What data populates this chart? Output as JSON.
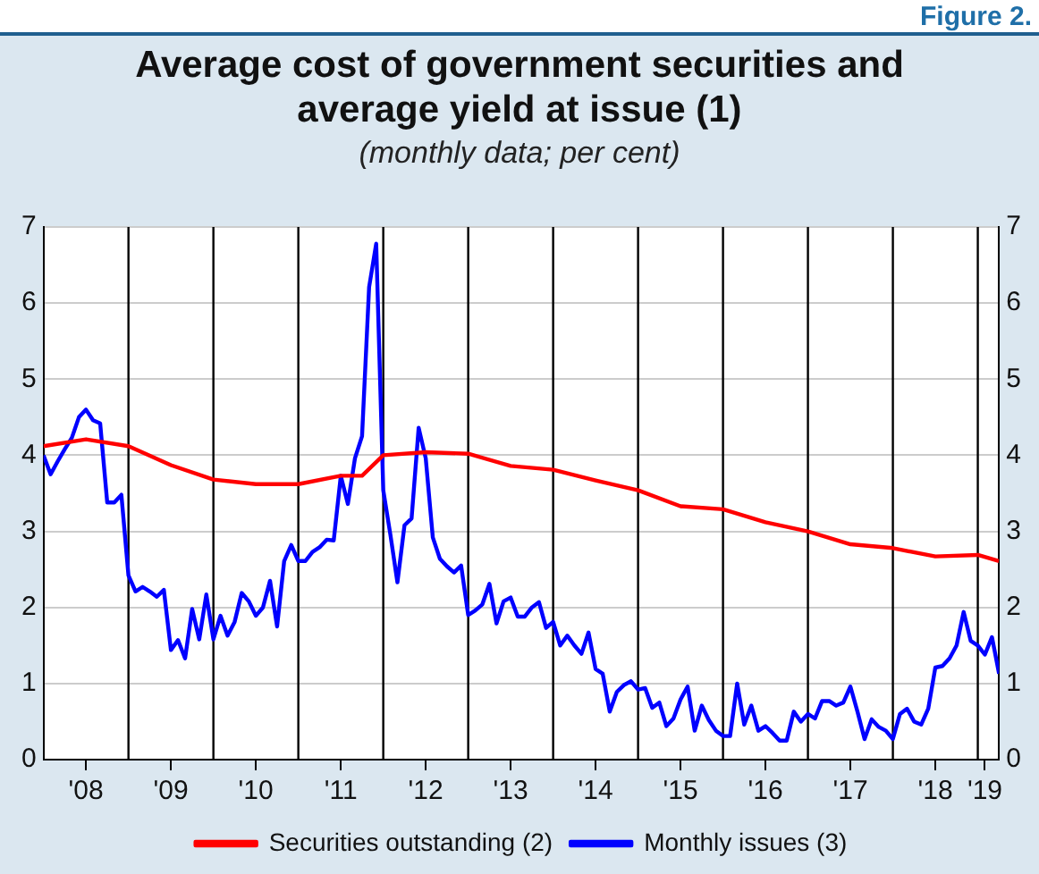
{
  "chart_data": {
    "type": "line",
    "title": "Average cost of government securities and average yield at issue (1)",
    "subtitle": "(monthly data; per cent)",
    "annotations": [
      "Figure 2."
    ],
    "x": [
      "2008-01",
      "2008-02",
      "2008-03",
      "2008-04",
      "2008-05",
      "2008-06",
      "2008-07",
      "2008-08",
      "2008-09",
      "2008-10",
      "2008-11",
      "2008-12",
      "2009-01",
      "2009-02",
      "2009-03",
      "2009-04",
      "2009-05",
      "2009-06",
      "2009-07",
      "2009-08",
      "2009-09",
      "2009-10",
      "2009-11",
      "2009-12",
      "2010-01",
      "2010-02",
      "2010-03",
      "2010-04",
      "2010-05",
      "2010-06",
      "2010-07",
      "2010-08",
      "2010-09",
      "2010-10",
      "2010-11",
      "2010-12",
      "2011-01",
      "2011-02",
      "2011-03",
      "2011-04",
      "2011-05",
      "2011-06",
      "2011-07",
      "2011-08",
      "2011-09",
      "2011-10",
      "2011-11",
      "2011-12",
      "2012-01",
      "2012-02",
      "2012-03",
      "2012-04",
      "2012-05",
      "2012-06",
      "2012-07",
      "2012-08",
      "2012-09",
      "2012-10",
      "2012-11",
      "2012-12",
      "2013-01",
      "2013-02",
      "2013-03",
      "2013-04",
      "2013-05",
      "2013-06",
      "2013-07",
      "2013-08",
      "2013-09",
      "2013-10",
      "2013-11",
      "2013-12",
      "2014-01",
      "2014-02",
      "2014-03",
      "2014-04",
      "2014-05",
      "2014-06",
      "2014-07",
      "2014-08",
      "2014-09",
      "2014-10",
      "2014-11",
      "2014-12",
      "2015-01",
      "2015-02",
      "2015-03",
      "2015-04",
      "2015-05",
      "2015-06",
      "2015-07",
      "2015-08",
      "2015-09",
      "2015-10",
      "2015-11",
      "2015-12",
      "2016-01",
      "2016-02",
      "2016-03",
      "2016-04",
      "2016-05",
      "2016-06",
      "2016-07",
      "2016-08",
      "2016-09",
      "2016-10",
      "2016-11",
      "2016-12",
      "2017-01",
      "2017-02",
      "2017-03",
      "2017-04",
      "2017-05",
      "2017-06",
      "2017-07",
      "2017-08",
      "2017-09",
      "2017-10",
      "2017-11",
      "2017-12",
      "2018-01",
      "2018-02",
      "2018-03",
      "2018-04",
      "2018-05",
      "2018-06",
      "2018-07",
      "2018-08",
      "2018-09",
      "2018-10",
      "2018-11",
      "2018-12",
      "2019-01",
      "2019-02",
      "2019-03",
      "2019-04"
    ],
    "series": [
      {
        "name": "Securities outstanding (2)",
        "color": "#ff0000",
        "x": [
          "2008-01",
          "2008-07",
          "2009-01",
          "2009-07",
          "2010-01",
          "2010-07",
          "2011-01",
          "2011-07",
          "2011-10",
          "2012-01",
          "2012-07",
          "2013-01",
          "2013-07",
          "2014-01",
          "2014-07",
          "2015-01",
          "2015-07",
          "2016-01",
          "2016-07",
          "2017-01",
          "2017-07",
          "2018-01",
          "2018-07",
          "2019-01",
          "2019-04"
        ],
        "values": [
          4.12,
          4.21,
          4.12,
          3.87,
          3.68,
          3.62,
          3.62,
          3.73,
          3.73,
          4.0,
          4.04,
          4.02,
          3.86,
          3.81,
          3.67,
          3.54,
          3.33,
          3.29,
          3.12,
          3.0,
          2.83,
          2.78,
          2.67,
          2.69,
          2.61
        ]
      },
      {
        "name": "Monthly issues (3)",
        "color": "#0000ff",
        "values": [
          4.0,
          3.75,
          3.92,
          4.08,
          4.23,
          4.5,
          4.6,
          4.46,
          4.42,
          3.38,
          3.38,
          3.48,
          2.42,
          2.21,
          2.27,
          2.21,
          2.14,
          2.23,
          1.44,
          1.57,
          1.33,
          1.98,
          1.58,
          2.17,
          1.58,
          1.89,
          1.63,
          1.81,
          2.19,
          2.08,
          1.89,
          2.0,
          2.35,
          1.75,
          2.61,
          2.82,
          2.61,
          2.61,
          2.73,
          2.79,
          2.89,
          2.88,
          3.73,
          3.36,
          3.96,
          4.25,
          6.21,
          6.78,
          3.54,
          2.96,
          2.33,
          3.08,
          3.17,
          4.36,
          3.96,
          2.92,
          2.64,
          2.54,
          2.46,
          2.55,
          1.9,
          1.96,
          2.04,
          2.31,
          1.79,
          2.08,
          2.13,
          1.88,
          1.88,
          2.0,
          2.07,
          1.73,
          1.81,
          1.5,
          1.63,
          1.5,
          1.39,
          1.67,
          1.19,
          1.13,
          0.63,
          0.89,
          0.98,
          1.03,
          0.92,
          0.94,
          0.68,
          0.75,
          0.44,
          0.54,
          0.79,
          0.96,
          0.38,
          0.71,
          0.52,
          0.38,
          0.31,
          0.31,
          1.0,
          0.46,
          0.71,
          0.38,
          0.44,
          0.35,
          0.25,
          0.25,
          0.63,
          0.5,
          0.6,
          0.54,
          0.77,
          0.77,
          0.71,
          0.75,
          0.96,
          0.63,
          0.27,
          0.53,
          0.43,
          0.38,
          0.27,
          0.6,
          0.67,
          0.5,
          0.46,
          0.67,
          1.21,
          1.23,
          1.33,
          1.5,
          1.94,
          1.56,
          1.5,
          1.38,
          1.61,
          1.13
        ]
      }
    ],
    "xlim": [
      "2008-01",
      "2019-04"
    ],
    "xticks": [
      {
        "value": "2008-07",
        "label": "'08"
      },
      {
        "value": "2009-07",
        "label": "'09"
      },
      {
        "value": "2010-07",
        "label": "'10"
      },
      {
        "value": "2011-07",
        "label": "'11"
      },
      {
        "value": "2012-07",
        "label": "'12"
      },
      {
        "value": "2013-07",
        "label": "'13"
      },
      {
        "value": "2014-07",
        "label": "'14"
      },
      {
        "value": "2015-07",
        "label": "'15"
      },
      {
        "value": "2016-07",
        "label": "'16"
      },
      {
        "value": "2017-07",
        "label": "'17"
      },
      {
        "value": "2018-07",
        "label": "'18"
      },
      {
        "value": "2019-02",
        "label": "'19"
      }
    ],
    "ylim": [
      0,
      7
    ],
    "yticks": [
      0,
      1,
      2,
      3,
      4,
      5,
      6,
      7
    ],
    "y2lim": [
      0,
      7
    ],
    "y2ticks": [
      0,
      1,
      2,
      3,
      4,
      5,
      6,
      7
    ],
    "ref_lines": [
      {
        "axis": "x",
        "value": "2009-01",
        "color": "#000000"
      },
      {
        "axis": "x",
        "value": "2010-01",
        "color": "#000000"
      },
      {
        "axis": "x",
        "value": "2011-01",
        "color": "#000000"
      },
      {
        "axis": "x",
        "value": "2012-01",
        "color": "#000000"
      },
      {
        "axis": "x",
        "value": "2013-01",
        "color": "#000000"
      },
      {
        "axis": "x",
        "value": "2014-01",
        "color": "#000000"
      },
      {
        "axis": "x",
        "value": "2015-01",
        "color": "#000000"
      },
      {
        "axis": "x",
        "value": "2016-01",
        "color": "#000000"
      },
      {
        "axis": "x",
        "value": "2017-01",
        "color": "#000000"
      },
      {
        "axis": "x",
        "value": "2018-01",
        "color": "#000000"
      },
      {
        "axis": "x",
        "value": "2019-01",
        "color": "#000000"
      }
    ],
    "grid": "y",
    "legend": "bottom",
    "line_style": "solid"
  }
}
